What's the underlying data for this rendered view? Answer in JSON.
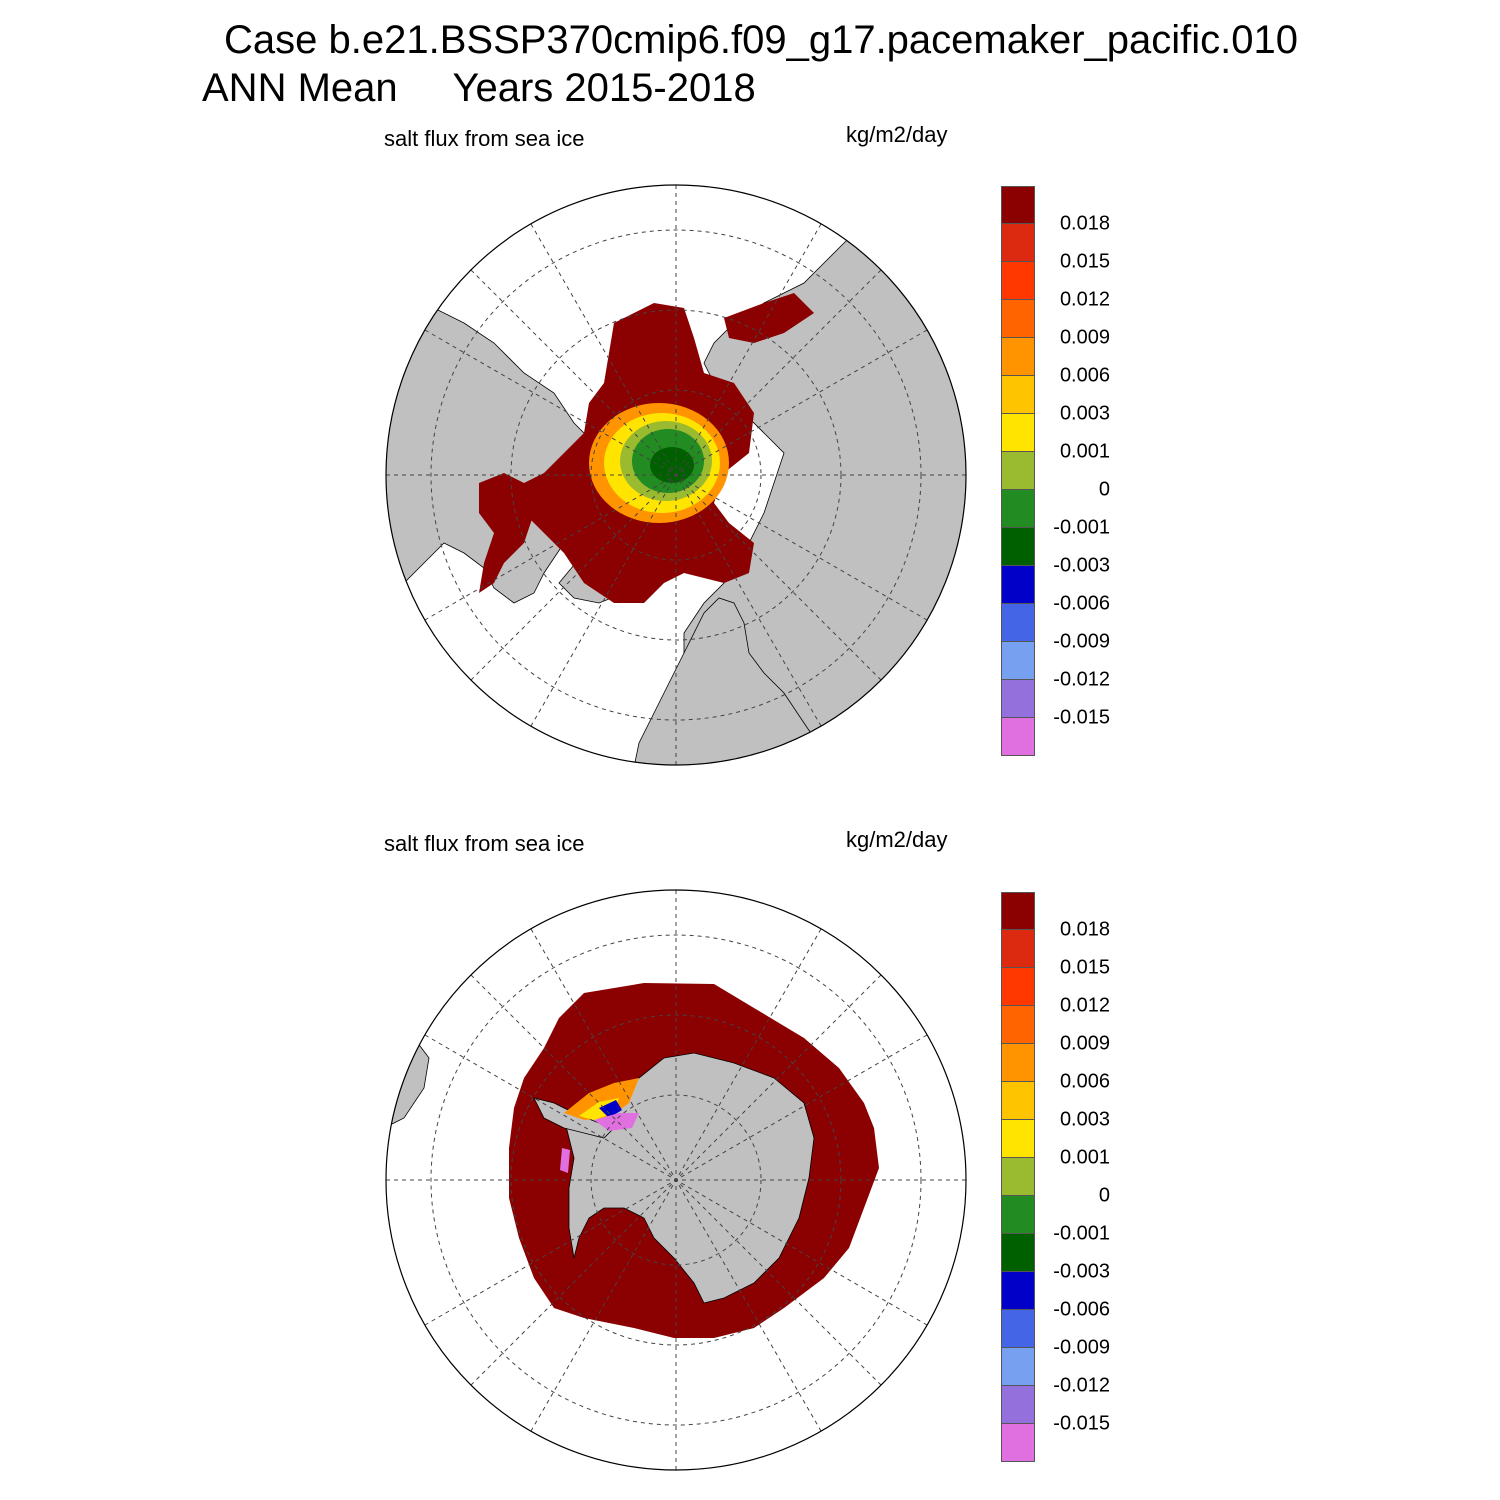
{
  "figure": {
    "title": "Case b.e21.BSSP370cmip6.f09_g17.pacemaker_pacific.010",
    "subtitle": "ANN Mean     Years 2015-2018"
  },
  "colors": {
    "land": "#c0c0c0",
    "ocean_no_ice": "#ffffff",
    "grid_line": "#444444"
  },
  "colorbar": {
    "labels": [
      "0.018",
      "0.015",
      "0.012",
      "0.009",
      "0.006",
      "0.003",
      "0.001",
      "0",
      "-0.001",
      "-0.003",
      "-0.006",
      "-0.009",
      "-0.012",
      "-0.015"
    ],
    "colors": [
      "#8b0000",
      "#dc2a10",
      "#ff3800",
      "#ff6400",
      "#ff9400",
      "#ffc400",
      "#ffe400",
      "#9aba30",
      "#228b22",
      "#006000",
      "#0000c8",
      "#4466e6",
      "#78a0f0",
      "#9370db",
      "#e070e0"
    ]
  },
  "panels": [
    {
      "id": "arctic",
      "title": "salt flux from sea ice",
      "units": "kg/m2/day",
      "hemisphere": "NH",
      "chart_data": {
        "type": "polar-stereographic contour map",
        "variable": "salt flux from sea ice",
        "units": "kg/m2/day",
        "hemisphere": "Northern",
        "levels": [
          -0.015,
          -0.012,
          -0.009,
          -0.006,
          -0.003,
          -0.001,
          0,
          0.001,
          0.003,
          0.006,
          0.009,
          0.012,
          0.015,
          0.018
        ],
        "dominant_value_range": ">0.018 over marginal ice zones",
        "central_arctic_range": "-0.003 to 0.003"
      }
    },
    {
      "id": "antarctic",
      "title": "salt flux from sea ice",
      "units": "kg/m2/day",
      "hemisphere": "SH",
      "chart_data": {
        "type": "polar-stereographic contour map",
        "variable": "salt flux from sea ice",
        "units": "kg/m2/day",
        "hemisphere": "Southern",
        "levels": [
          -0.015,
          -0.012,
          -0.009,
          -0.006,
          -0.003,
          -0.001,
          0,
          0.001,
          0.003,
          0.006,
          0.009,
          0.012,
          0.015,
          0.018
        ],
        "dominant_value_range": ">0.018 in ring around Antarctica",
        "coastal_range": "-0.015 to -0.006 near Weddell Sea coast"
      }
    }
  ]
}
